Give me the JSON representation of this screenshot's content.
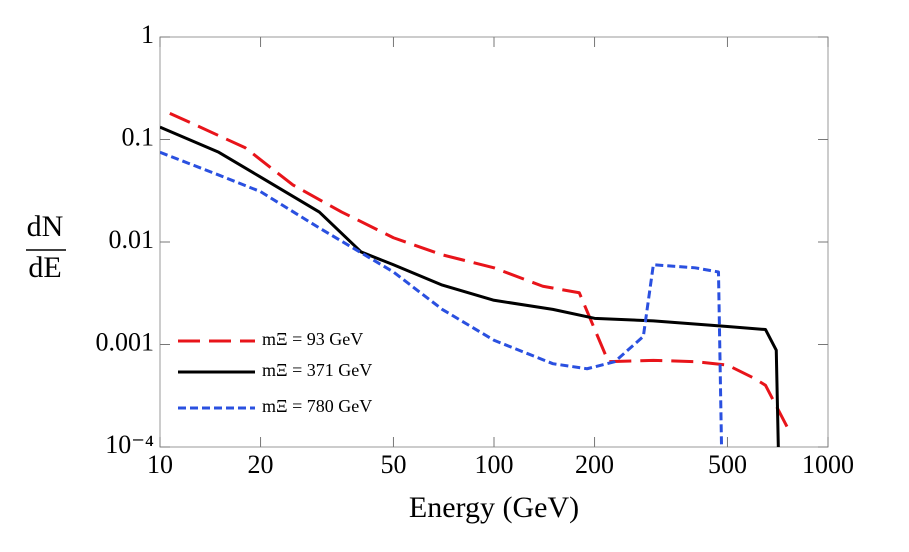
{
  "chart_data": {
    "type": "line",
    "xlabel": "Energy (GeV)",
    "ylabel": {
      "numerator": "dN",
      "denominator": "dE"
    },
    "xscale": "log",
    "yscale": "log",
    "xlim": [
      10,
      1000
    ],
    "ylim": [
      0.0001,
      1
    ],
    "xticks": [
      10,
      20,
      50,
      100,
      200,
      500,
      1000
    ],
    "yticks": [
      {
        "value": 0.0001,
        "label": "10⁻⁴"
      },
      0.001,
      0.01,
      0.1,
      1
    ],
    "legend": "lower left",
    "series": [
      {
        "name": "mΞ = 93 GeV",
        "color": "#e8141a",
        "dash": "long",
        "x": [
          10.7,
          13,
          18,
          25,
          35,
          50,
          70,
          100,
          140,
          180,
          220,
          300,
          400,
          500,
          600,
          650,
          760
        ],
        "values": [
          0.18,
          0.135,
          0.083,
          0.036,
          0.0196,
          0.011,
          0.0075,
          0.0056,
          0.0037,
          0.0032,
          0.00068,
          0.0007,
          0.00068,
          0.00063,
          0.00047,
          0.0004,
          0.00015
        ]
      },
      {
        "name": "mΞ = 371 GeV",
        "color": "#000000",
        "dash": "solid",
        "x": [
          10,
          15,
          20,
          30,
          40,
          50,
          70,
          100,
          150,
          200,
          300,
          500,
          650,
          700,
          710
        ],
        "values": [
          0.132,
          0.075,
          0.043,
          0.0196,
          0.008,
          0.006,
          0.0038,
          0.0027,
          0.0022,
          0.0018,
          0.0017,
          0.0015,
          0.0014,
          0.00088,
          0.0001
        ]
      },
      {
        "name": "mΞ = 780 GeV",
        "color": "#2a50e0",
        "dash": "short",
        "x": [
          10,
          15,
          20,
          30,
          50,
          70,
          100,
          150,
          190,
          230,
          280,
          300,
          400,
          470,
          480
        ],
        "values": [
          0.075,
          0.045,
          0.031,
          0.0137,
          0.0051,
          0.0022,
          0.0011,
          0.00065,
          0.00058,
          0.00068,
          0.0012,
          0.006,
          0.0056,
          0.0051,
          0.0001
        ]
      }
    ]
  }
}
